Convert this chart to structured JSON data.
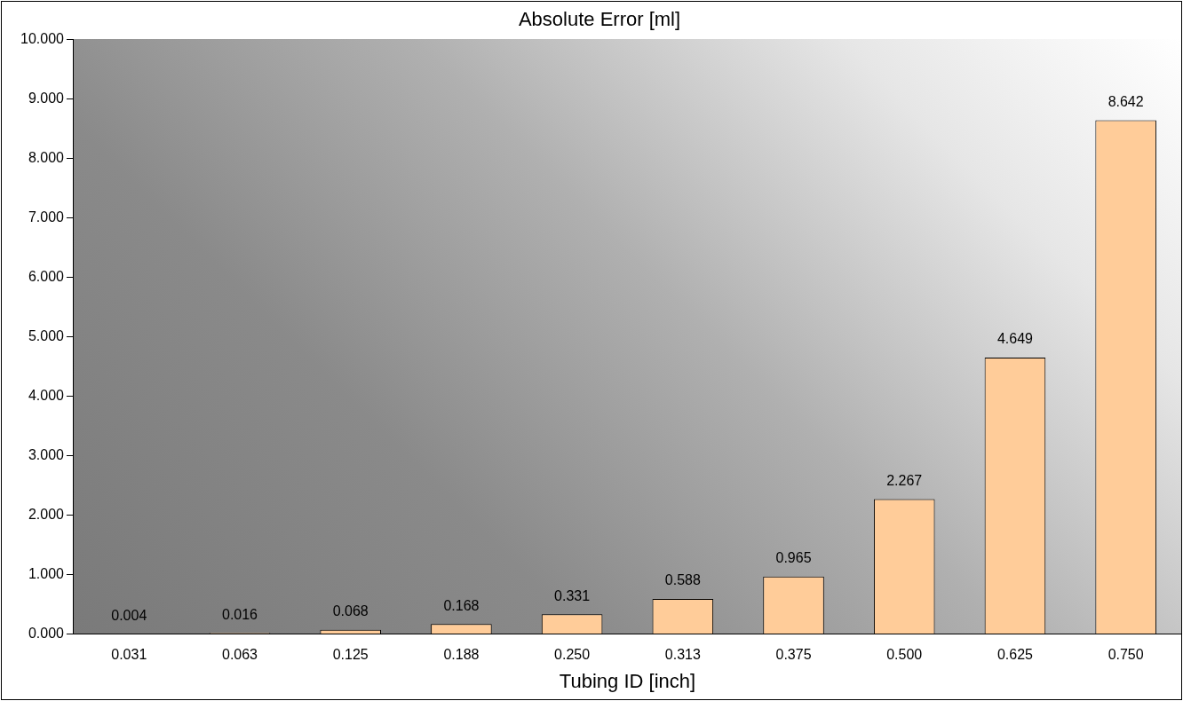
{
  "chart_data": {
    "type": "bar",
    "title": "Absolute Error [ml]",
    "xlabel": "Tubing ID [inch]",
    "categories": [
      "0.031",
      "0.063",
      "0.125",
      "0.188",
      "0.250",
      "0.313",
      "0.375",
      "0.500",
      "0.625",
      "0.750"
    ],
    "values": [
      0.004,
      0.016,
      0.068,
      0.168,
      0.331,
      0.588,
      0.965,
      2.267,
      4.649,
      8.642
    ],
    "color": "#ffcc99",
    "ylim": [
      0,
      10
    ],
    "yticks": [
      {
        "value": 0,
        "label": "0.000"
      },
      {
        "value": 1,
        "label": "1.000"
      },
      {
        "value": 2,
        "label": "2.000"
      },
      {
        "value": 3,
        "label": "3.000"
      },
      {
        "value": 4,
        "label": "4.000"
      },
      {
        "value": 5,
        "label": "5.000"
      },
      {
        "value": 6,
        "label": "6.000"
      },
      {
        "value": 7,
        "label": "7.000"
      },
      {
        "value": 8,
        "label": "8.000"
      },
      {
        "value": 9,
        "label": "9.000"
      },
      {
        "value": 10,
        "label": "10.000"
      }
    ],
    "grid": false,
    "legend": false,
    "data_labels": true
  }
}
